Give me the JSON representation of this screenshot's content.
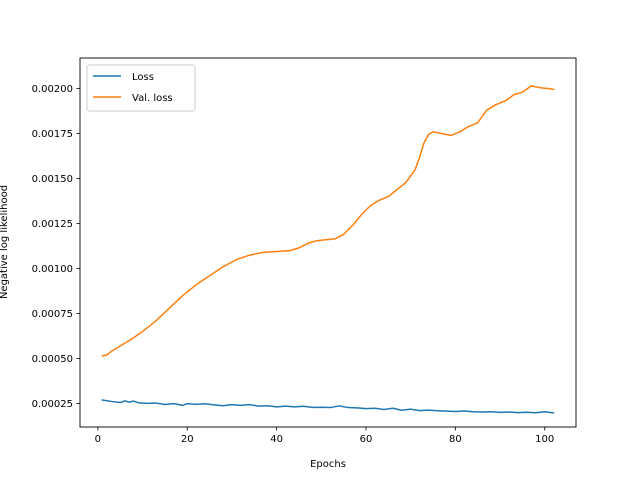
{
  "chart_data": {
    "type": "line",
    "title": "",
    "xlabel": "Epochs",
    "ylabel": "Negative log likelihood",
    "xlim": [
      -4,
      107
    ],
    "ylim": [
      0.00012,
      0.00217
    ],
    "xticks": [
      0,
      20,
      40,
      60,
      80,
      100
    ],
    "yticks": [
      0.00025,
      0.0005,
      0.00075,
      0.001,
      0.00125,
      0.0015,
      0.00175,
      0.002
    ],
    "ytick_labels": [
      "0.00025",
      "0.00050",
      "0.00075",
      "0.00100",
      "0.00125",
      "0.00150",
      "0.00175",
      "0.00200"
    ],
    "xtick_labels": [
      "0",
      "20",
      "40",
      "60",
      "80",
      "100"
    ],
    "grid": false,
    "legend_position": "top-left",
    "series": [
      {
        "name": "Loss",
        "color": "#1f77b4",
        "points": [
          [
            1,
            0.00027
          ],
          [
            3,
            0.000262
          ],
          [
            5,
            0.000256
          ],
          [
            6,
            0.000265
          ],
          [
            7,
            0.000258
          ],
          [
            8,
            0.000264
          ],
          [
            9,
            0.000255
          ],
          [
            11,
            0.000251
          ],
          [
            13,
            0.000253
          ],
          [
            15,
            0.000245
          ],
          [
            17,
            0.00025
          ],
          [
            19,
            0.00024
          ],
          [
            20,
            0.00025
          ],
          [
            22,
            0.000246
          ],
          [
            24,
            0.000249
          ],
          [
            26,
            0.000243
          ],
          [
            28,
            0.000238
          ],
          [
            30,
            0.000244
          ],
          [
            32,
            0.00024
          ],
          [
            34,
            0.000244
          ],
          [
            36,
            0.000236
          ],
          [
            38,
            0.000238
          ],
          [
            40,
            0.000232
          ],
          [
            42,
            0.000236
          ],
          [
            44,
            0.000232
          ],
          [
            46,
            0.000235
          ],
          [
            48,
            0.000229
          ],
          [
            50,
            0.00023
          ],
          [
            52,
            0.000228
          ],
          [
            54,
            0.000237
          ],
          [
            56,
            0.000228
          ],
          [
            58,
            0.000226
          ],
          [
            60,
            0.000222
          ],
          [
            62,
            0.000224
          ],
          [
            64,
            0.000217
          ],
          [
            66,
            0.000224
          ],
          [
            68,
            0.000213
          ],
          [
            70,
            0.000219
          ],
          [
            72,
            0.000211
          ],
          [
            74,
            0.000214
          ],
          [
            76,
            0.00021
          ],
          [
            78,
            0.000208
          ],
          [
            80,
            0.000206
          ],
          [
            82,
            0.000209
          ],
          [
            84,
            0.000205
          ],
          [
            86,
            0.000203
          ],
          [
            88,
            0.000205
          ],
          [
            90,
            0.000201
          ],
          [
            92,
            0.000203
          ],
          [
            94,
            0.0002
          ],
          [
            96,
            0.000202
          ],
          [
            98,
            0.000199
          ],
          [
            100,
            0.000205
          ],
          [
            102,
            0.000198
          ]
        ]
      },
      {
        "name": "Val. loss",
        "color": "#ff7f0e",
        "points": [
          [
            1,
            0.000515
          ],
          [
            2,
            0.00052
          ],
          [
            3,
            0.00054
          ],
          [
            5,
            0.00057
          ],
          [
            7,
            0.0006
          ],
          [
            10,
            0.00065
          ],
          [
            13,
            0.00071
          ],
          [
            16,
            0.00078
          ],
          [
            19,
            0.00085
          ],
          [
            22,
            0.00091
          ],
          [
            25,
            0.00096
          ],
          [
            28,
            0.00101
          ],
          [
            31,
            0.00105
          ],
          [
            34,
            0.001075
          ],
          [
            37,
            0.00109
          ],
          [
            40,
            0.001095
          ],
          [
            43,
            0.0011
          ],
          [
            45,
            0.001115
          ],
          [
            47,
            0.00114
          ],
          [
            49,
            0.001155
          ],
          [
            51,
            0.00116
          ],
          [
            53,
            0.001165
          ],
          [
            55,
            0.00119
          ],
          [
            57,
            0.00124
          ],
          [
            59,
            0.0013
          ],
          [
            61,
            0.00135
          ],
          [
            63,
            0.00138
          ],
          [
            65,
            0.0014
          ],
          [
            67,
            0.00144
          ],
          [
            69,
            0.00148
          ],
          [
            71,
            0.00155
          ],
          [
            72,
            0.00162
          ],
          [
            73,
            0.0017
          ],
          [
            74,
            0.001745
          ],
          [
            75,
            0.00176
          ],
          [
            77,
            0.00175
          ],
          [
            79,
            0.00174
          ],
          [
            81,
            0.00176
          ],
          [
            83,
            0.00179
          ],
          [
            85,
            0.00181
          ],
          [
            87,
            0.00188
          ],
          [
            89,
            0.00191
          ],
          [
            91,
            0.00193
          ],
          [
            92,
            0.001945
          ],
          [
            93,
            0.001965
          ],
          [
            95,
            0.00198
          ],
          [
            97,
            0.002015
          ],
          [
            99,
            0.002005
          ],
          [
            101,
            0.002
          ],
          [
            102,
            0.001995
          ]
        ]
      }
    ]
  }
}
